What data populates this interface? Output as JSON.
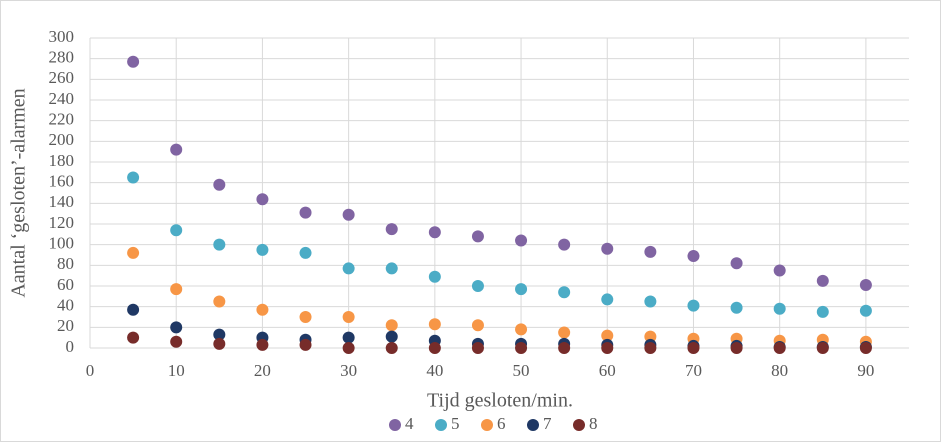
{
  "chart_data": {
    "type": "scatter",
    "x_label": "Tijd gesloten/min.",
    "y_label": "Aantal ‘gesloten’-alarmen",
    "x": [
      5,
      10,
      15,
      20,
      25,
      30,
      35,
      40,
      45,
      50,
      55,
      60,
      65,
      70,
      75,
      80,
      85,
      90
    ],
    "series": [
      {
        "name": "4",
        "color": "#8064a2",
        "values": [
          277,
          192,
          158,
          144,
          131,
          129,
          115,
          112,
          108,
          104,
          100,
          96,
          93,
          89,
          82,
          75,
          65,
          61
        ]
      },
      {
        "name": "5",
        "color": "#4bacc6",
        "values": [
          165,
          114,
          100,
          95,
          92,
          77,
          77,
          69,
          60,
          57,
          54,
          47,
          45,
          41,
          39,
          38,
          35,
          36
        ]
      },
      {
        "name": "6",
        "color": "#f79646",
        "values": [
          92,
          57,
          45,
          37,
          30,
          30,
          22,
          23,
          22,
          18,
          15,
          12,
          11,
          9,
          9,
          7,
          8,
          6
        ]
      },
      {
        "name": "7",
        "color": "#1f3864",
        "values": [
          37,
          20,
          13,
          10,
          8,
          10,
          11,
          7,
          4,
          4,
          4,
          3,
          3,
          2,
          2,
          1,
          1,
          1
        ]
      },
      {
        "name": "8",
        "color": "#772c2a",
        "values": [
          10,
          6,
          4,
          3,
          3,
          0,
          0,
          0,
          0,
          0,
          0,
          0,
          0,
          0,
          0,
          0,
          0,
          0
        ]
      }
    ],
    "xlim": [
      0,
      95
    ],
    "xticks": [
      0,
      10,
      20,
      30,
      40,
      50,
      60,
      70,
      80,
      90
    ],
    "ylim": [
      0,
      300
    ],
    "yticks": [
      0,
      20,
      40,
      60,
      80,
      100,
      120,
      140,
      160,
      180,
      200,
      220,
      240,
      260,
      280,
      300
    ],
    "grid": true,
    "legend": "bottom"
  }
}
